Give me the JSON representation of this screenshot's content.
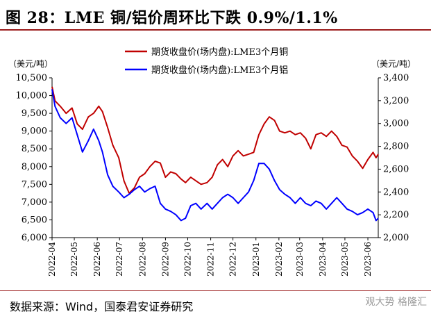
{
  "figure": {
    "title": "图 28：LME 铜/铝价周环比下跌 0.9%/1.1%",
    "source": "数据来源：Wind，国泰君安证券研究",
    "watermark": "观大势 格隆汇"
  },
  "chart_data": {
    "type": "line",
    "x_ticks": [
      "2022-04",
      "2022-05",
      "2022-06",
      "2022-07",
      "2022-08",
      "2022-09",
      "2022-10",
      "2022-11",
      "2022-12",
      "2023-01",
      "2023-02",
      "2023-03",
      "2023-04",
      "2023-05",
      "2023-06"
    ],
    "x_range": [
      "2022-04-01",
      "2023-06-15"
    ],
    "y_left": {
      "unit": "（美元/吨）",
      "min": 6000,
      "max": 10500,
      "ticks": [
        6000,
        6500,
        7000,
        7500,
        8000,
        8500,
        9000,
        9500,
        10000,
        10500
      ]
    },
    "y_right": {
      "unit": "（美元/吨）",
      "min": 2000,
      "max": 3400,
      "ticks": [
        2000,
        2200,
        2400,
        2600,
        2800,
        3000,
        3200,
        3400
      ]
    },
    "legend_position": "top-center",
    "series": [
      {
        "name": "期货收盘价(场内盘):LME3个月铜",
        "axis": "left",
        "color": "#c00000",
        "points": [
          [
            "2022-04-01",
            10250
          ],
          [
            "2022-04-05",
            9850
          ],
          [
            "2022-04-12",
            9700
          ],
          [
            "2022-04-20",
            9500
          ],
          [
            "2022-04-28",
            9650
          ],
          [
            "2022-05-05",
            9200
          ],
          [
            "2022-05-12",
            9050
          ],
          [
            "2022-05-20",
            9400
          ],
          [
            "2022-05-27",
            9500
          ],
          [
            "2022-06-03",
            9700
          ],
          [
            "2022-06-08",
            9550
          ],
          [
            "2022-06-15",
            9100
          ],
          [
            "2022-06-22",
            8600
          ],
          [
            "2022-06-30",
            8250
          ],
          [
            "2022-07-07",
            7600
          ],
          [
            "2022-07-14",
            7250
          ],
          [
            "2022-07-21",
            7400
          ],
          [
            "2022-07-28",
            7700
          ],
          [
            "2022-08-04",
            7800
          ],
          [
            "2022-08-11",
            8000
          ],
          [
            "2022-08-18",
            8150
          ],
          [
            "2022-08-25",
            8100
          ],
          [
            "2022-09-01",
            7700
          ],
          [
            "2022-09-08",
            7850
          ],
          [
            "2022-09-15",
            7800
          ],
          [
            "2022-09-22",
            7650
          ],
          [
            "2022-09-28",
            7550
          ],
          [
            "2022-10-05",
            7700
          ],
          [
            "2022-10-12",
            7600
          ],
          [
            "2022-10-19",
            7500
          ],
          [
            "2022-10-27",
            7550
          ],
          [
            "2022-11-03",
            7700
          ],
          [
            "2022-11-10",
            8050
          ],
          [
            "2022-11-17",
            8200
          ],
          [
            "2022-11-24",
            8000
          ],
          [
            "2022-12-01",
            8300
          ],
          [
            "2022-12-08",
            8450
          ],
          [
            "2022-12-15",
            8300
          ],
          [
            "2022-12-22",
            8350
          ],
          [
            "2022-12-29",
            8400
          ],
          [
            "2023-01-05",
            8900
          ],
          [
            "2023-01-12",
            9200
          ],
          [
            "2023-01-19",
            9400
          ],
          [
            "2023-01-26",
            9300
          ],
          [
            "2023-02-02",
            9000
          ],
          [
            "2023-02-09",
            8950
          ],
          [
            "2023-02-16",
            9000
          ],
          [
            "2023-02-23",
            8900
          ],
          [
            "2023-03-02",
            8950
          ],
          [
            "2023-03-09",
            8800
          ],
          [
            "2023-03-16",
            8500
          ],
          [
            "2023-03-23",
            8900
          ],
          [
            "2023-03-30",
            8950
          ],
          [
            "2023-04-06",
            8850
          ],
          [
            "2023-04-13",
            9000
          ],
          [
            "2023-04-20",
            8850
          ],
          [
            "2023-04-27",
            8600
          ],
          [
            "2023-05-04",
            8550
          ],
          [
            "2023-05-11",
            8300
          ],
          [
            "2023-05-18",
            8150
          ],
          [
            "2023-05-25",
            7950
          ],
          [
            "2023-06-01",
            8200
          ],
          [
            "2023-06-08",
            8400
          ],
          [
            "2023-06-12",
            8250
          ],
          [
            "2023-06-15",
            8350
          ]
        ]
      },
      {
        "name": "期货收盘价(场内盘):LME3个月铝",
        "axis": "right",
        "color": "#0000ff",
        "points": [
          [
            "2022-04-01",
            3300
          ],
          [
            "2022-04-05",
            3150
          ],
          [
            "2022-04-12",
            3050
          ],
          [
            "2022-04-20",
            3000
          ],
          [
            "2022-04-28",
            3050
          ],
          [
            "2022-05-05",
            2900
          ],
          [
            "2022-05-12",
            2750
          ],
          [
            "2022-05-20",
            2850
          ],
          [
            "2022-05-27",
            2950
          ],
          [
            "2022-06-03",
            2850
          ],
          [
            "2022-06-08",
            2750
          ],
          [
            "2022-06-15",
            2550
          ],
          [
            "2022-06-22",
            2450
          ],
          [
            "2022-06-30",
            2400
          ],
          [
            "2022-07-07",
            2350
          ],
          [
            "2022-07-14",
            2380
          ],
          [
            "2022-07-21",
            2420
          ],
          [
            "2022-07-28",
            2450
          ],
          [
            "2022-08-04",
            2400
          ],
          [
            "2022-08-11",
            2430
          ],
          [
            "2022-08-18",
            2450
          ],
          [
            "2022-08-25",
            2300
          ],
          [
            "2022-09-01",
            2250
          ],
          [
            "2022-09-08",
            2230
          ],
          [
            "2022-09-15",
            2200
          ],
          [
            "2022-09-22",
            2150
          ],
          [
            "2022-09-28",
            2170
          ],
          [
            "2022-10-05",
            2280
          ],
          [
            "2022-10-12",
            2300
          ],
          [
            "2022-10-19",
            2250
          ],
          [
            "2022-10-27",
            2300
          ],
          [
            "2022-11-03",
            2250
          ],
          [
            "2022-11-10",
            2300
          ],
          [
            "2022-11-17",
            2350
          ],
          [
            "2022-11-24",
            2380
          ],
          [
            "2022-12-01",
            2350
          ],
          [
            "2022-12-08",
            2300
          ],
          [
            "2022-12-15",
            2350
          ],
          [
            "2022-12-22",
            2400
          ],
          [
            "2022-12-29",
            2500
          ],
          [
            "2023-01-05",
            2650
          ],
          [
            "2023-01-12",
            2650
          ],
          [
            "2023-01-19",
            2600
          ],
          [
            "2023-01-26",
            2500
          ],
          [
            "2023-02-02",
            2420
          ],
          [
            "2023-02-09",
            2380
          ],
          [
            "2023-02-16",
            2350
          ],
          [
            "2023-02-23",
            2300
          ],
          [
            "2023-03-02",
            2350
          ],
          [
            "2023-03-09",
            2300
          ],
          [
            "2023-03-16",
            2280
          ],
          [
            "2023-03-23",
            2320
          ],
          [
            "2023-03-30",
            2300
          ],
          [
            "2023-04-06",
            2250
          ],
          [
            "2023-04-13",
            2300
          ],
          [
            "2023-04-20",
            2350
          ],
          [
            "2023-04-27",
            2300
          ],
          [
            "2023-05-04",
            2250
          ],
          [
            "2023-05-11",
            2230
          ],
          [
            "2023-05-18",
            2200
          ],
          [
            "2023-05-25",
            2220
          ],
          [
            "2023-06-01",
            2250
          ],
          [
            "2023-06-08",
            2220
          ],
          [
            "2023-06-12",
            2150
          ],
          [
            "2023-06-15",
            2170
          ]
        ]
      }
    ]
  }
}
